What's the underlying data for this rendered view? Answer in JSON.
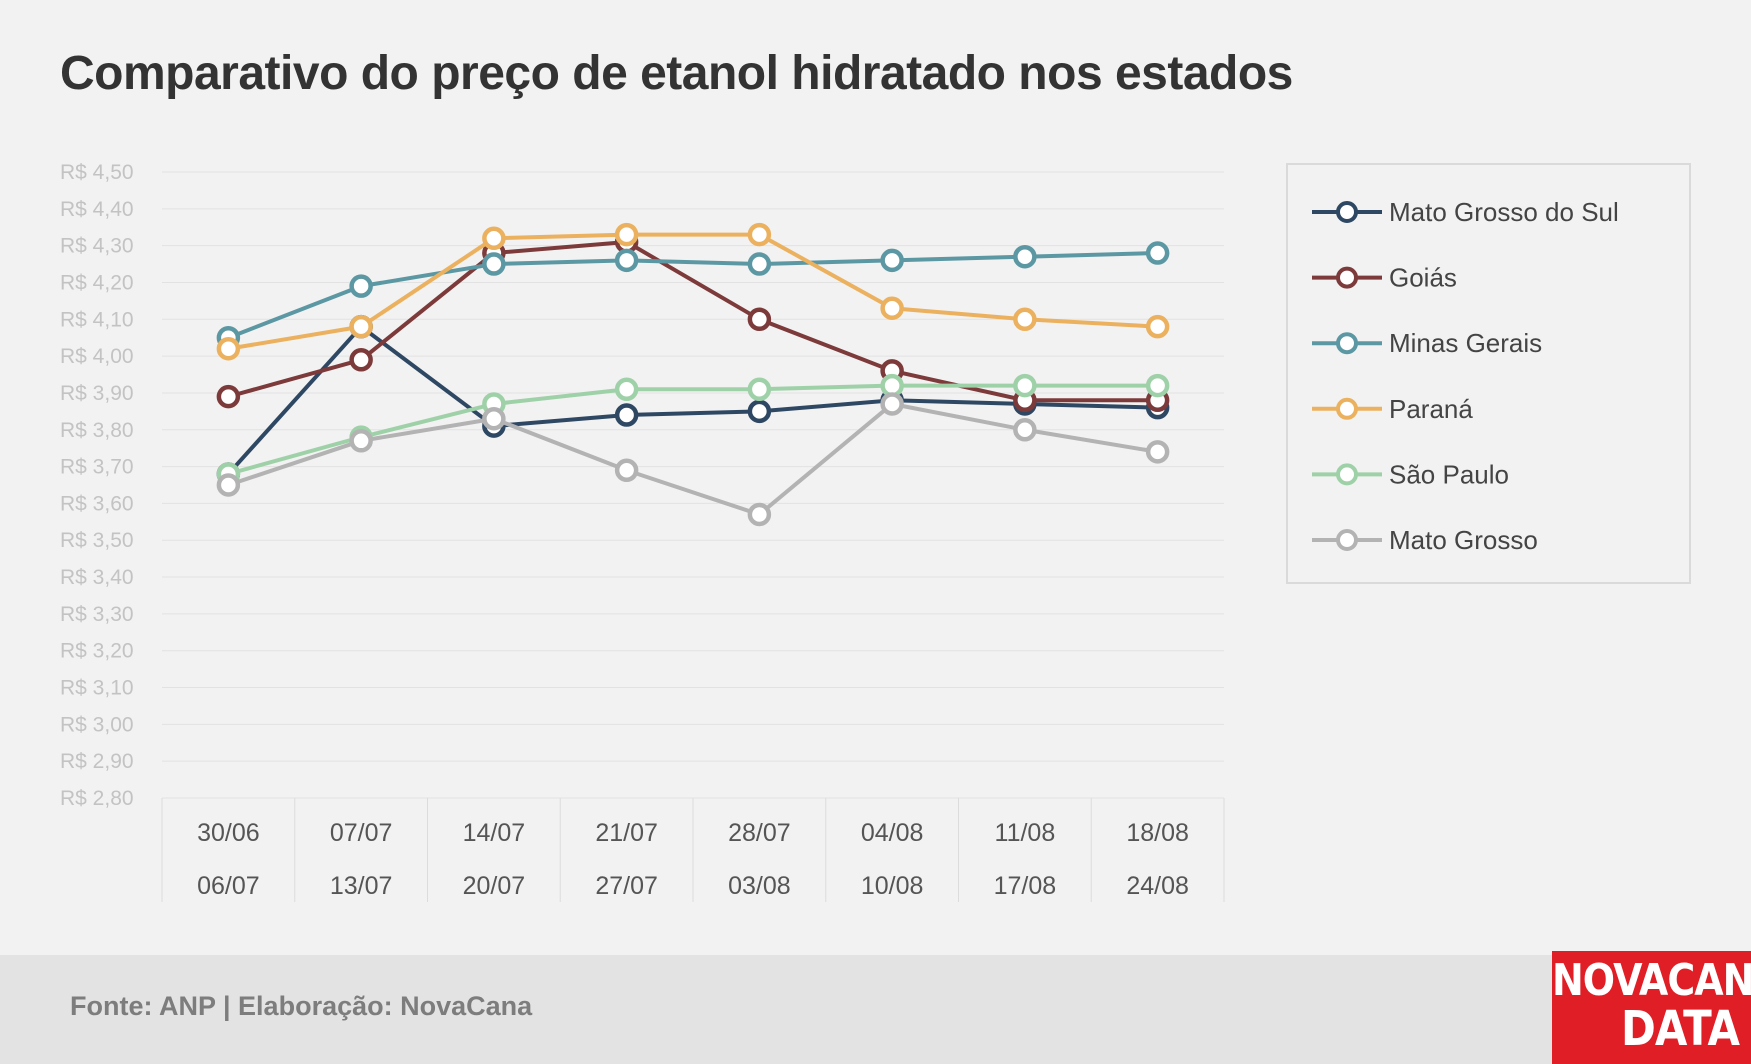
{
  "title": "Comparativo do preço de etanol hidratado nos estados",
  "footer": {
    "source": "Fonte: ANP | Elaboração: NovaCana"
  },
  "brand": {
    "line1": "NOVACANA",
    "line2": "DATA",
    "color": "#e01e26"
  },
  "chart_data": {
    "type": "line",
    "title": "Comparativo do preço de etanol hidratado nos estados",
    "categories": [
      [
        "30/06",
        "06/07"
      ],
      [
        "07/07",
        "13/07"
      ],
      [
        "14/07",
        "20/07"
      ],
      [
        "21/07",
        "27/07"
      ],
      [
        "28/07",
        "03/08"
      ],
      [
        "04/08",
        "10/08"
      ],
      [
        "11/08",
        "17/08"
      ],
      [
        "18/08",
        "24/08"
      ]
    ],
    "ylim": [
      2.8,
      4.5
    ],
    "ystep": 0.1,
    "y_tick_labels": [
      "R$ 4,50",
      "R$ 4,40",
      "R$ 4,30",
      "R$ 4,20",
      "R$ 4,10",
      "R$ 4,00",
      "R$ 3,90",
      "R$ 3,80",
      "R$ 3,70",
      "R$ 3,60",
      "R$ 3,50",
      "R$ 3,40",
      "R$ 3,30",
      "R$ 3,20",
      "R$ 3,10",
      "R$ 3,00",
      "R$ 2,90",
      "R$ 2,80"
    ],
    "grid": true,
    "legend_position": "right",
    "series": [
      {
        "name": "Mato Grosso do Sul",
        "color": "#2e4864",
        "values": [
          3.68,
          4.08,
          3.81,
          3.84,
          3.85,
          3.88,
          3.87,
          3.86
        ]
      },
      {
        "name": "Goiás",
        "color": "#7d3a3a",
        "values": [
          3.89,
          3.99,
          4.28,
          4.31,
          4.1,
          3.96,
          3.88,
          3.88
        ]
      },
      {
        "name": "Minas Gerais",
        "color": "#5c98a3",
        "values": [
          4.05,
          4.19,
          4.25,
          4.26,
          4.25,
          4.26,
          4.27,
          4.28
        ]
      },
      {
        "name": "Paraná",
        "color": "#ebb15f",
        "values": [
          4.02,
          4.08,
          4.32,
          4.33,
          4.33,
          4.13,
          4.1,
          4.08
        ]
      },
      {
        "name": "São Paulo",
        "color": "#9fd1a8",
        "values": [
          3.68,
          3.78,
          3.87,
          3.91,
          3.91,
          3.92,
          3.92,
          3.92
        ]
      },
      {
        "name": "Mato Grosso",
        "color": "#b3b3b3",
        "values": [
          3.65,
          3.77,
          3.83,
          3.69,
          3.57,
          3.87,
          3.8,
          3.74
        ]
      }
    ]
  }
}
